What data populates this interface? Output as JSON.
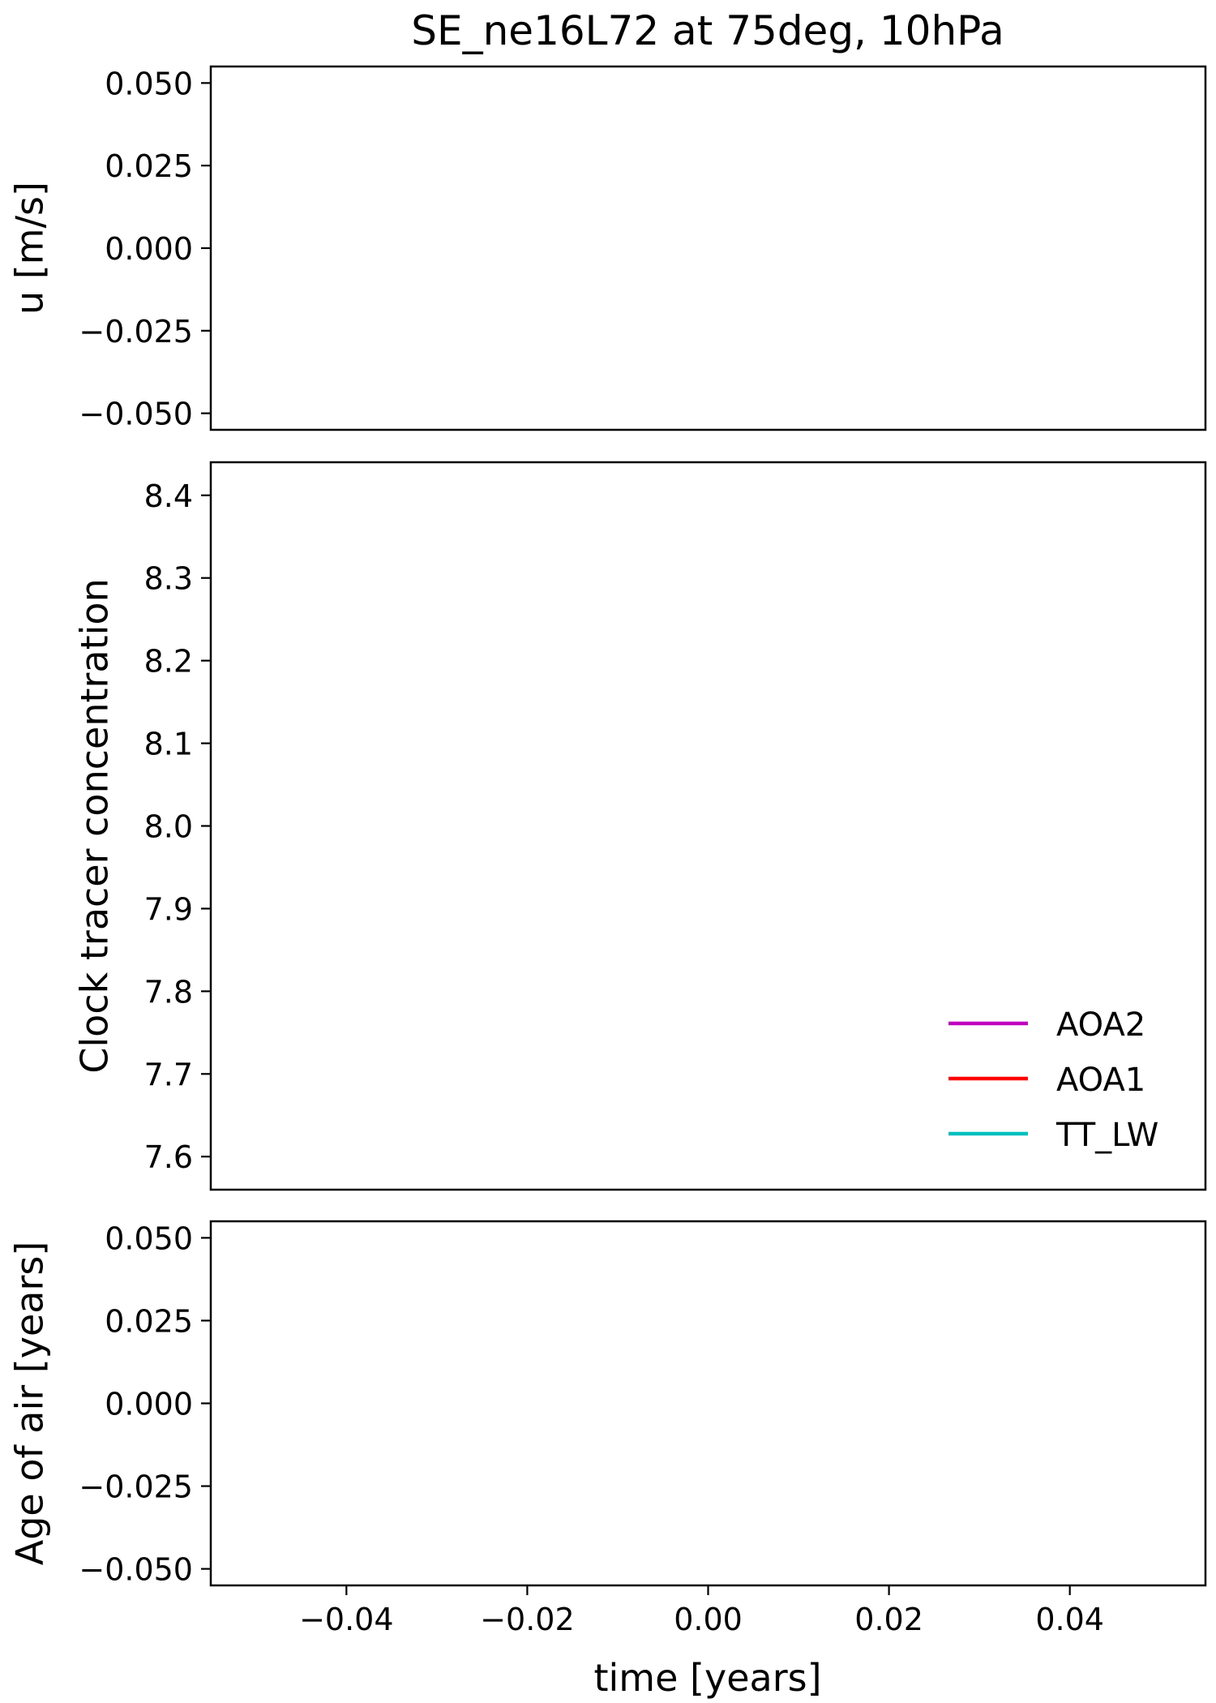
{
  "figure": {
    "title": "SE_ne16L72 at 75deg, 10hPa",
    "xlabel": "time [years]"
  },
  "chart_data": [
    {
      "type": "line",
      "id": "u",
      "ylabel": "u  [m/s]",
      "ylim": [
        -0.055,
        0.055
      ],
      "yticks": [
        0.05,
        0.025,
        0.0,
        -0.025,
        -0.05
      ],
      "ytick_labels": [
        "0.050",
        "0.025",
        "0.000",
        "−0.025",
        "−0.050"
      ],
      "xlim": [
        -0.055,
        0.055
      ],
      "series": []
    },
    {
      "type": "line",
      "id": "clock",
      "ylabel": "Clock tracer concentration",
      "ylim": [
        7.56,
        8.44
      ],
      "yticks": [
        8.4,
        8.3,
        8.2,
        8.1,
        8.0,
        7.9,
        7.8,
        7.7,
        7.6
      ],
      "ytick_labels": [
        "8.4",
        "8.3",
        "8.2",
        "8.1",
        "8.0",
        "7.9",
        "7.8",
        "7.7",
        "7.6"
      ],
      "xlim": [
        -0.055,
        0.055
      ],
      "legend_position": "lower-right",
      "series": [
        {
          "name": "AOA2",
          "color": "#bf00bf",
          "x": [],
          "y": []
        },
        {
          "name": "AOA1",
          "color": "#ff0000",
          "x": [],
          "y": []
        },
        {
          "name": "TT_LW",
          "color": "#00bfbf",
          "x": [],
          "y": []
        }
      ]
    },
    {
      "type": "line",
      "id": "age",
      "ylabel": "Age of air  [years]",
      "ylim": [
        -0.055,
        0.055
      ],
      "yticks": [
        0.05,
        0.025,
        0.0,
        -0.025,
        -0.05
      ],
      "ytick_labels": [
        "0.050",
        "0.025",
        "0.000",
        "−0.025",
        "−0.050"
      ],
      "xlim": [
        -0.055,
        0.055
      ],
      "xticks": [
        -0.04,
        -0.02,
        0.0,
        0.02,
        0.04
      ],
      "xtick_labels": [
        "−0.04",
        "−0.02",
        "0.00",
        "0.02",
        "0.04"
      ],
      "series": []
    }
  ]
}
